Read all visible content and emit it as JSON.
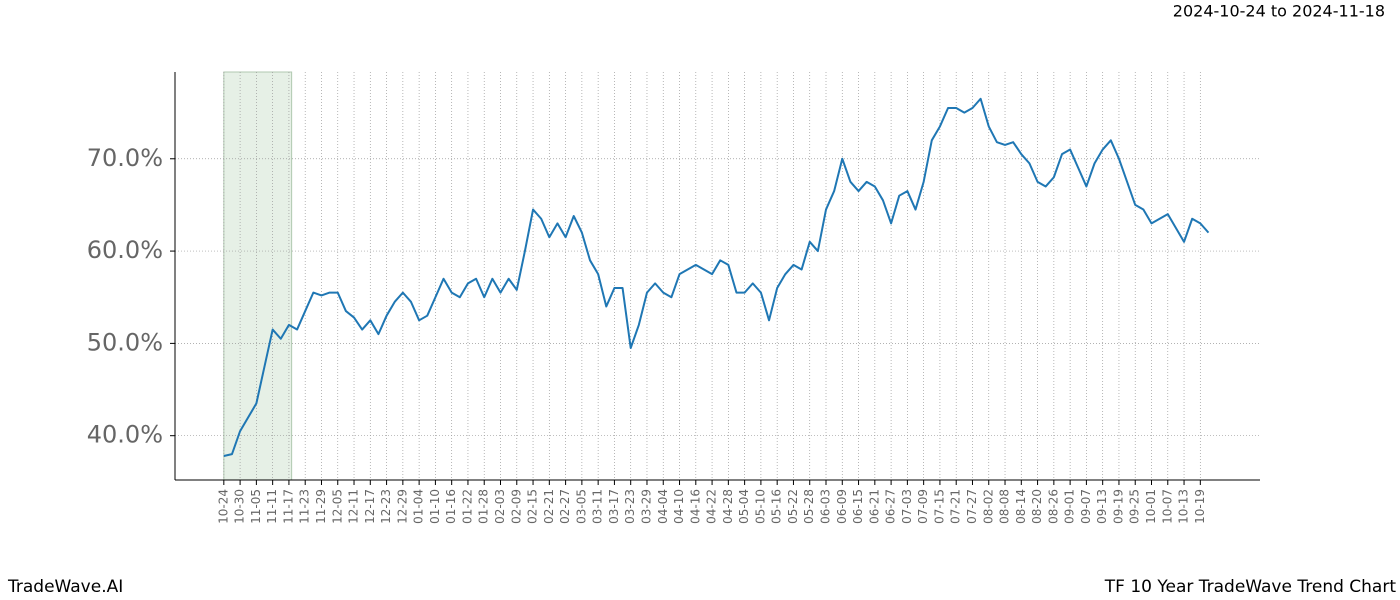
{
  "chart_data": {
    "type": "line",
    "subtitle": "2024-10-24 to 2024-11-18",
    "footer_left": "TradeWave.AI",
    "footer_right": "TF 10 Year TradeWave Trend Chart",
    "highlight_range": [
      0,
      25
    ],
    "highlight_color": "#e6f0e6",
    "grid": true,
    "xlim": [
      -18,
      382
    ],
    "ylim": [
      35.2,
      79.4
    ],
    "yticks": [
      {
        "value": 40,
        "label": "40.0%"
      },
      {
        "value": 50,
        "label": "50.0%"
      },
      {
        "value": 60,
        "label": "60.0%"
      },
      {
        "value": 70,
        "label": "70.0%"
      }
    ],
    "xticks": [
      {
        "value": 0,
        "label": "10-24"
      },
      {
        "value": 6,
        "label": "10-30"
      },
      {
        "value": 12,
        "label": "11-05"
      },
      {
        "value": 18,
        "label": "11-11"
      },
      {
        "value": 24,
        "label": "11-17"
      },
      {
        "value": 30,
        "label": "11-23"
      },
      {
        "value": 36,
        "label": "11-29"
      },
      {
        "value": 42,
        "label": "12-05"
      },
      {
        "value": 48,
        "label": "12-11"
      },
      {
        "value": 54,
        "label": "12-17"
      },
      {
        "value": 60,
        "label": "12-23"
      },
      {
        "value": 66,
        "label": "12-29"
      },
      {
        "value": 72,
        "label": "01-04"
      },
      {
        "value": 78,
        "label": "01-10"
      },
      {
        "value": 84,
        "label": "01-16"
      },
      {
        "value": 90,
        "label": "01-22"
      },
      {
        "value": 96,
        "label": "01-28"
      },
      {
        "value": 102,
        "label": "02-03"
      },
      {
        "value": 108,
        "label": "02-09"
      },
      {
        "value": 114,
        "label": "02-15"
      },
      {
        "value": 120,
        "label": "02-21"
      },
      {
        "value": 126,
        "label": "02-27"
      },
      {
        "value": 132,
        "label": "03-05"
      },
      {
        "value": 138,
        "label": "03-11"
      },
      {
        "value": 144,
        "label": "03-17"
      },
      {
        "value": 150,
        "label": "03-23"
      },
      {
        "value": 156,
        "label": "03-29"
      },
      {
        "value": 162,
        "label": "04-04"
      },
      {
        "value": 168,
        "label": "04-10"
      },
      {
        "value": 174,
        "label": "04-16"
      },
      {
        "value": 180,
        "label": "04-22"
      },
      {
        "value": 186,
        "label": "04-28"
      },
      {
        "value": 192,
        "label": "05-04"
      },
      {
        "value": 198,
        "label": "05-10"
      },
      {
        "value": 204,
        "label": "05-16"
      },
      {
        "value": 210,
        "label": "05-22"
      },
      {
        "value": 216,
        "label": "05-28"
      },
      {
        "value": 222,
        "label": "06-03"
      },
      {
        "value": 228,
        "label": "06-09"
      },
      {
        "value": 234,
        "label": "06-15"
      },
      {
        "value": 240,
        "label": "06-21"
      },
      {
        "value": 246,
        "label": "06-27"
      },
      {
        "value": 252,
        "label": "07-03"
      },
      {
        "value": 258,
        "label": "07-09"
      },
      {
        "value": 264,
        "label": "07-15"
      },
      {
        "value": 270,
        "label": "07-21"
      },
      {
        "value": 276,
        "label": "07-27"
      },
      {
        "value": 282,
        "label": "08-02"
      },
      {
        "value": 288,
        "label": "08-08"
      },
      {
        "value": 294,
        "label": "08-14"
      },
      {
        "value": 300,
        "label": "08-20"
      },
      {
        "value": 306,
        "label": "08-26"
      },
      {
        "value": 312,
        "label": "09-01"
      },
      {
        "value": 318,
        "label": "09-07"
      },
      {
        "value": 324,
        "label": "09-13"
      },
      {
        "value": 330,
        "label": "09-19"
      },
      {
        "value": 336,
        "label": "09-25"
      },
      {
        "value": 342,
        "label": "10-01"
      },
      {
        "value": 348,
        "label": "10-07"
      },
      {
        "value": 354,
        "label": "10-13"
      },
      {
        "value": 360,
        "label": "10-19"
      }
    ],
    "x": [
      0,
      3,
      6,
      9,
      12,
      15,
      18,
      21,
      24,
      27,
      30,
      33,
      36,
      39,
      42,
      45,
      48,
      51,
      54,
      57,
      60,
      63,
      66,
      69,
      72,
      75,
      78,
      81,
      84,
      87,
      90,
      93,
      96,
      99,
      102,
      105,
      108,
      111,
      114,
      117,
      120,
      123,
      126,
      129,
      132,
      135,
      138,
      141,
      144,
      147,
      150,
      153,
      156,
      159,
      162,
      165,
      168,
      171,
      174,
      177,
      180,
      183,
      186,
      189,
      192,
      195,
      198,
      201,
      204,
      207,
      210,
      213,
      216,
      219,
      222,
      225,
      228,
      231,
      234,
      237,
      240,
      243,
      246,
      249,
      252,
      255,
      258,
      261,
      264,
      267,
      270,
      273,
      276,
      279,
      282,
      285,
      288,
      291,
      294,
      297,
      300,
      303,
      306,
      309,
      312,
      315,
      318,
      321,
      324,
      327,
      330,
      333,
      336,
      339,
      342,
      345,
      348,
      351,
      354,
      357,
      360,
      363
    ],
    "series": [
      {
        "color": "#1f77b4",
        "values": [
          37.8,
          38,
          40.5,
          42,
          43.5,
          47.5,
          51.5,
          50.5,
          52,
          51.5,
          53.5,
          55.5,
          55.2,
          55.5,
          55.5,
          53.5,
          52.8,
          51.5,
          52.5,
          51,
          53,
          54.5,
          55.5,
          54.5,
          52.5,
          53,
          55,
          57,
          55.5,
          55,
          56.5,
          57,
          55,
          57,
          55.5,
          57,
          55.8,
          60,
          64.5,
          63.5,
          61.5,
          63,
          61.5,
          63.8,
          62,
          59,
          57.5,
          54,
          56,
          56,
          49.5,
          52,
          55.5,
          56.5,
          55.5,
          55,
          57.5,
          58,
          58.5,
          58,
          57.5,
          59,
          58.5,
          55.5,
          55.5,
          56.5,
          55.5,
          52.5,
          56,
          57.5,
          58.5,
          58,
          61,
          60,
          64.5,
          66.5,
          70,
          67.5,
          66.5,
          67.5,
          67,
          65.5,
          63,
          66,
          66.5,
          64.5,
          67.5,
          72,
          73.5,
          75.5,
          75.5,
          75,
          75.5,
          76.5,
          73.5,
          71.8,
          71.5,
          71.8,
          70.5,
          69.5,
          67.5,
          67,
          68,
          70.5,
          71,
          69,
          67,
          69.5,
          71,
          72,
          70,
          67.5,
          65,
          64.5,
          63,
          63.5,
          64,
          62.5,
          61,
          63.5,
          63,
          62
        ]
      }
    ]
  }
}
